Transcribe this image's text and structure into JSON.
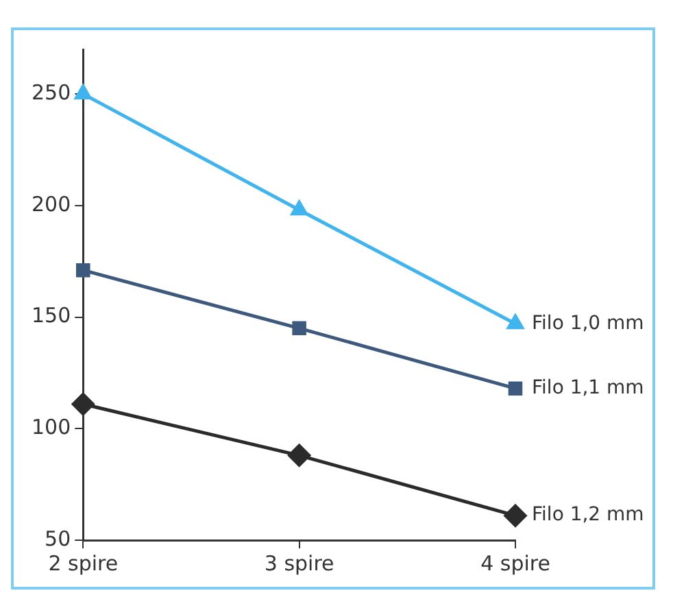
{
  "chart_data": {
    "type": "line",
    "categories": [
      "2 spire",
      "3 spire",
      "4 spire"
    ],
    "series": [
      {
        "name": "Filo 1,0 mm",
        "color": "#3fb4ee",
        "marker": "triangle",
        "values": [
          250,
          198,
          147
        ]
      },
      {
        "name": "Filo 1,1 mm",
        "color": "#3d5a7e",
        "marker": "square",
        "values": [
          171,
          145,
          118
        ]
      },
      {
        "name": "Filo 1,2 mm",
        "color": "#2b2b2b",
        "marker": "diamond",
        "values": [
          111,
          88,
          61
        ]
      }
    ],
    "ylim": [
      50,
      270
    ],
    "yticks": [
      50,
      100,
      150,
      200,
      250
    ],
    "grid": false,
    "legend": false
  }
}
